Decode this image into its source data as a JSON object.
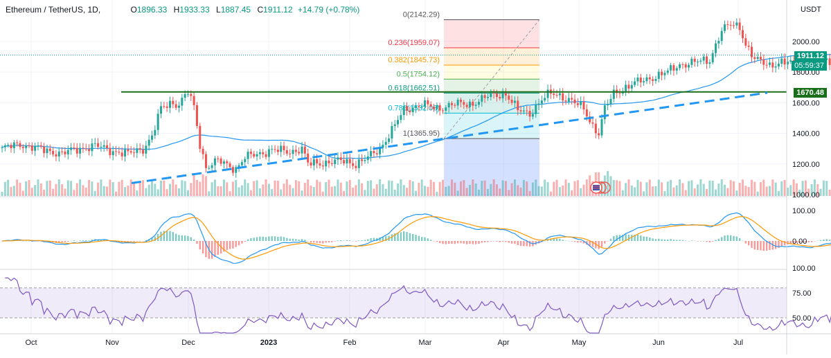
{
  "header": {
    "symbol": "Ethereum / TetherUS, 1D,",
    "open_label": "O",
    "open": "1896.33",
    "high_label": "H",
    "high": "1933.33",
    "low_label": "L",
    "low": "1887.45",
    "close_label": "C",
    "close": "1911.12",
    "change": "+14.79 (+0.78%)"
  },
  "price_axis": {
    "unit": "USDT",
    "ticks": [
      "2000.00",
      "1800.00",
      "1600.00",
      "1400.00",
      "1200.00",
      "1000.00"
    ]
  },
  "price_tag": {
    "price": "1911.12",
    "countdown": "05:59:37",
    "color": "#089981"
  },
  "level_tag": {
    "price": "1670.48",
    "color": "#1b6f1b"
  },
  "macd_axis": {
    "ticks": [
      "100.00",
      "0.00"
    ]
  },
  "rsi_axis": {
    "ticks": [
      "100.00",
      "75.00",
      "50.00"
    ]
  },
  "time_axis": [
    "Oct",
    "Nov",
    "Dec",
    "2023",
    "Feb",
    "Mar",
    "Apr",
    "May",
    "Jun",
    "Jul"
  ],
  "fib_levels": [
    {
      "ratio": "0",
      "label": "0(2142.29)",
      "color": "#555555"
    },
    {
      "ratio": "0.236",
      "label": "0.236(1959.07)",
      "color": "#f23645"
    },
    {
      "ratio": "0.382",
      "label": "0.382(1845.73)",
      "color": "#ff9800"
    },
    {
      "ratio": "0.5",
      "label": "0.5(1754.12)",
      "color": "#4caf50"
    },
    {
      "ratio": "0.618",
      "label": "0.618(1662.51)",
      "color": "#089981"
    },
    {
      "ratio": "0.786",
      "label": "0.786(1532.08)",
      "color": "#00bcd4"
    },
    {
      "ratio": "1",
      "label": "1(1365.95)",
      "color": "#555555"
    }
  ],
  "colors": {
    "up": "#26a69a",
    "down": "#ef5350",
    "ma": "#2196f3",
    "signal": "#ff9800",
    "rsi": "#7e57c2",
    "horizontal_line": "#1b6f1b",
    "trendline": "#2196f3"
  },
  "chart_data": {
    "type": "candlestick",
    "title": "Ethereum / TetherUS, 1D",
    "y_unit": "USDT",
    "ylim": [
      1000,
      2250
    ],
    "candles_monthly_close_approx": [
      {
        "x": "Sep",
        "close": 1300
      },
      {
        "x": "Oct",
        "close": 1290
      },
      {
        "x": "Nov",
        "close": 1290
      },
      {
        "x": "Dec",
        "close": 1200
      },
      {
        "x": "Jan",
        "close": 1590
      },
      {
        "x": "Feb",
        "close": 1605
      },
      {
        "x": "Mar",
        "close": 1820
      },
      {
        "x": "Apr",
        "close": 1870
      },
      {
        "x": "May",
        "close": 1911.12
      }
    ],
    "key_points": {
      "nov_high": 1670.48,
      "nov_low": 1075,
      "mar_low": 1365.95,
      "apr_high": 2142.29,
      "last_close": 1911.12
    },
    "horizontal_level": 1670.48,
    "trendline": {
      "from": {
        "x": "2022-11-09",
        "y": 1075
      },
      "to": {
        "x": "2023-07-25",
        "y": 1665
      }
    },
    "macd": {
      "ylim": [
        -50,
        110
      ],
      "last": 4
    },
    "rsi": {
      "ylim": [
        35,
        100
      ],
      "band": [
        50,
        80
      ],
      "last": 52
    }
  }
}
